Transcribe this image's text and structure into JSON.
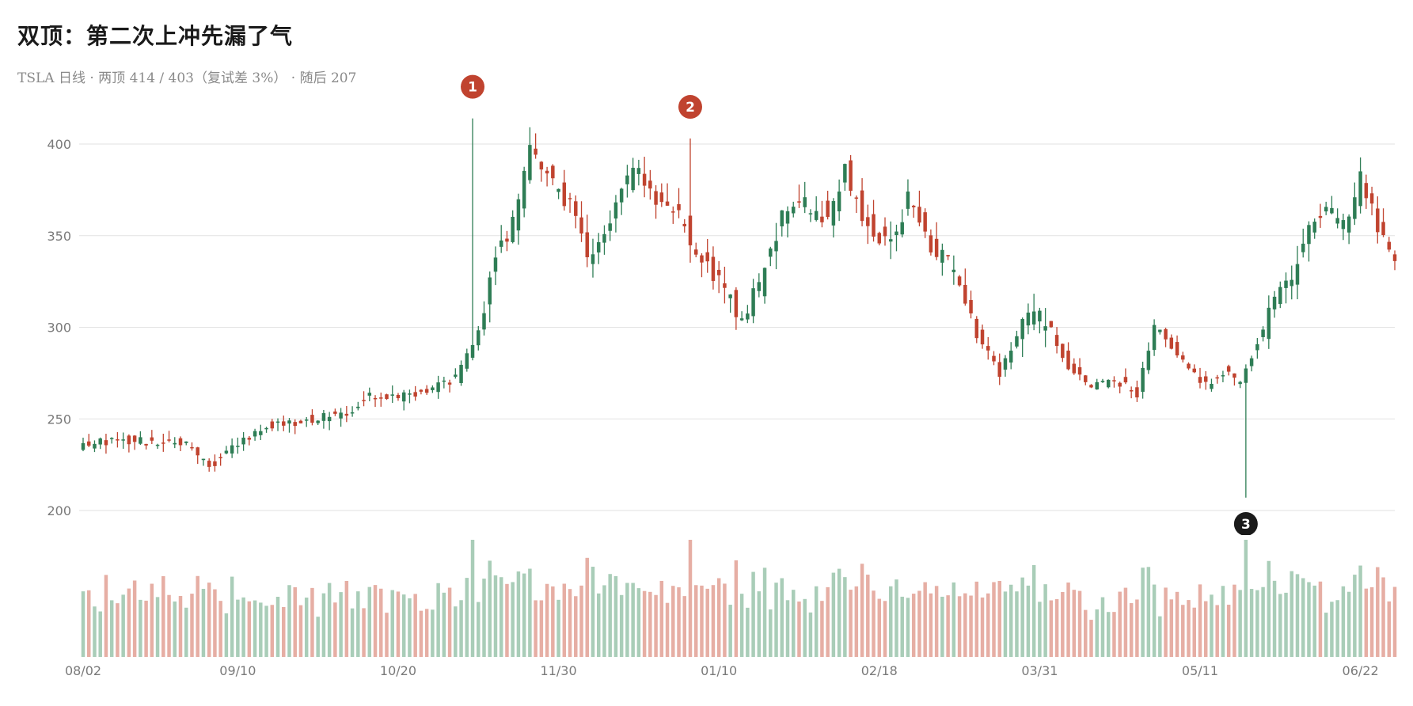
{
  "header": {
    "title": "双顶：第二次上冲先漏了气",
    "subtitle": "TSLA 日线 · 两顶 414 / 403（复试差 3%） · 随后 207"
  },
  "colors": {
    "up": "#2e7d55",
    "down": "#c0432f",
    "volume_up": "#a9cdb8",
    "volume_down": "#e6aea4",
    "grid": "#e2e2e2",
    "marker_peak": "#c0432f",
    "marker_low": "#1a1a1a"
  },
  "chart_data": {
    "type": "candlestick",
    "ticker": "TSLA",
    "timeframe": "日线",
    "ylim": [
      200,
      414
    ],
    "yticks": [
      200,
      250,
      300,
      350,
      400
    ],
    "grid": true,
    "xtick_labels": [
      "08/02",
      "09/10",
      "10/20",
      "11/30",
      "01/10",
      "02/18",
      "03/31",
      "05/11",
      "06/22"
    ],
    "xtick_bar_index": [
      0,
      27,
      55,
      83,
      111,
      139,
      167,
      195,
      223
    ],
    "num_bars": 230,
    "anchors": [
      [
        0,
        236
      ],
      [
        5,
        238
      ],
      [
        10,
        238
      ],
      [
        15,
        238
      ],
      [
        18,
        236
      ],
      [
        22,
        224
      ],
      [
        27,
        236
      ],
      [
        32,
        246
      ],
      [
        38,
        249
      ],
      [
        45,
        252
      ],
      [
        50,
        262
      ],
      [
        55,
        262
      ],
      [
        60,
        266
      ],
      [
        65,
        272
      ],
      [
        69,
        298
      ],
      [
        72,
        338
      ],
      [
        75,
        358
      ],
      [
        78,
        395
      ],
      [
        82,
        380
      ],
      [
        86,
        360
      ],
      [
        88,
        340
      ],
      [
        92,
        355
      ],
      [
        96,
        390
      ],
      [
        100,
        372
      ],
      [
        104,
        362
      ],
      [
        108,
        336
      ],
      [
        112,
        320
      ],
      [
        115,
        304
      ],
      [
        118,
        322
      ],
      [
        122,
        360
      ],
      [
        126,
        367
      ],
      [
        130,
        361
      ],
      [
        133,
        385
      ],
      [
        137,
        355
      ],
      [
        141,
        345
      ],
      [
        144,
        370
      ],
      [
        148,
        344
      ],
      [
        152,
        332
      ],
      [
        156,
        296
      ],
      [
        160,
        274
      ],
      [
        164,
        305
      ],
      [
        168,
        305
      ],
      [
        172,
        278
      ],
      [
        176,
        268
      ],
      [
        180,
        272
      ],
      [
        184,
        264
      ],
      [
        187,
        300
      ],
      [
        190,
        290
      ],
      [
        193,
        278
      ],
      [
        196,
        268
      ],
      [
        199,
        276
      ],
      [
        202,
        270
      ],
      [
        205,
        292
      ],
      [
        208,
        313
      ],
      [
        211,
        330
      ],
      [
        214,
        355
      ],
      [
        217,
        364
      ],
      [
        220,
        358
      ],
      [
        223,
        380
      ],
      [
        226,
        357
      ],
      [
        229,
        336
      ]
    ],
    "markers": [
      {
        "label": "1",
        "bar": 68,
        "value": 414,
        "kind": "peak"
      },
      {
        "label": "2",
        "bar": 106,
        "value": 403,
        "kind": "peak"
      },
      {
        "label": "3",
        "bar": 203,
        "value": 207,
        "kind": "low"
      }
    ],
    "series": [
      {
        "name": "两顶",
        "values": [
          414,
          403
        ]
      },
      {
        "name": "随后",
        "values": [
          207
        ]
      }
    ]
  }
}
